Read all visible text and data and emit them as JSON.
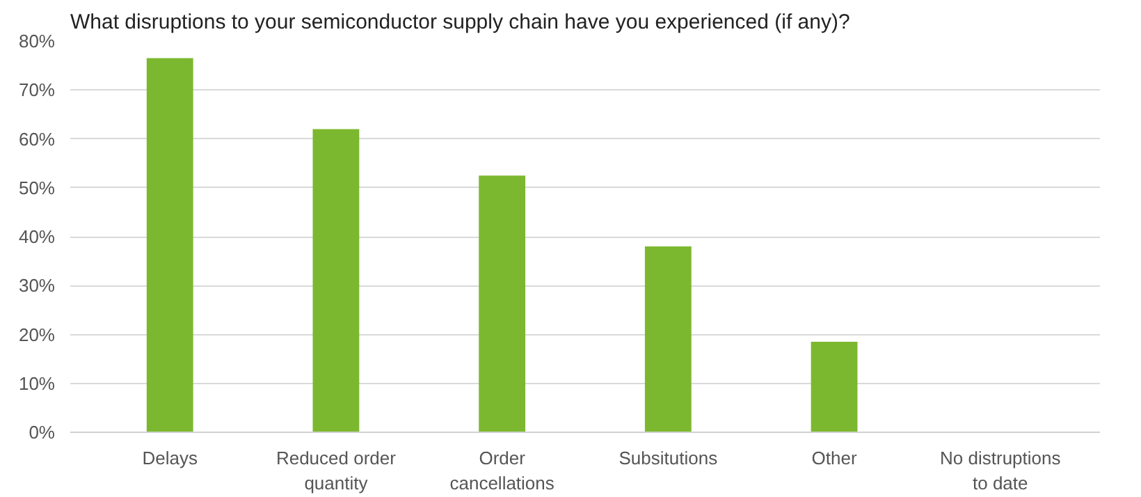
{
  "chart_data": {
    "type": "bar",
    "title": "What disruptions to your semiconductor supply chain have you experienced (if any)?",
    "categories": [
      "Delays",
      "Reduced order\nquantity",
      "Order\ncancellations",
      "Subsitutions",
      "Other",
      "No distruptions\nto date"
    ],
    "values": [
      76.5,
      62,
      52.5,
      38,
      18.5,
      0
    ],
    "color": "#7cb82f",
    "ylim": [
      0,
      80
    ],
    "yticks": [
      {
        "value": 0,
        "label": "0%"
      },
      {
        "value": 10,
        "label": "10%"
      },
      {
        "value": 20,
        "label": "20%"
      },
      {
        "value": 30,
        "label": "30%"
      },
      {
        "value": 40,
        "label": "40%"
      },
      {
        "value": 50,
        "label": "50%"
      },
      {
        "value": 60,
        "label": "60%"
      },
      {
        "value": 70,
        "label": "70%"
      },
      {
        "value": 80,
        "label": "80%"
      }
    ],
    "grid": "y"
  }
}
